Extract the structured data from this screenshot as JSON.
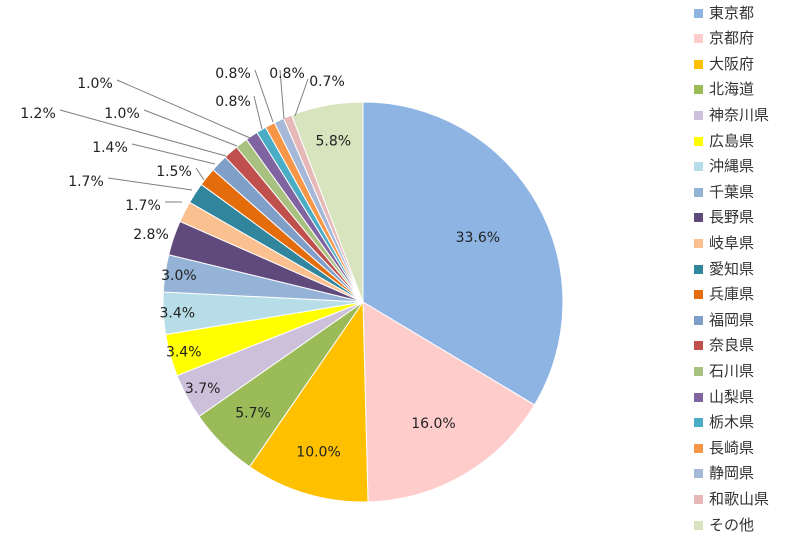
{
  "chart_data": {
    "type": "pie",
    "title": "",
    "categories": [
      "東京都",
      "京都府",
      "大阪府",
      "北海道",
      "神奈川県",
      "広島県",
      "沖縄県",
      "千葉県",
      "長野県",
      "岐阜県",
      "愛知県",
      "兵庫県",
      "福岡県",
      "奈良県",
      "石川県",
      "山梨県",
      "栃木県",
      "長崎県",
      "静岡県",
      "和歌山県",
      "その他"
    ],
    "values": [
      33.6,
      16.0,
      10.0,
      5.7,
      3.7,
      3.4,
      3.4,
      3.0,
      2.8,
      1.7,
      1.7,
      1.5,
      1.4,
      1.2,
      1.0,
      1.0,
      0.8,
      0.8,
      0.8,
      0.7,
      5.8
    ],
    "labels": [
      "33.6%",
      "16.0%",
      "10.0%",
      "5.7%",
      "3.7%",
      "3.4%",
      "3.4%",
      "3.0%",
      "2.8%",
      "1.7%",
      "1.7%",
      "1.5%",
      "1.4%",
      "1.2%",
      "1.0%",
      "1.0%",
      "0.8%",
      "0.8%",
      "0.8%",
      "0.7%",
      "5.8%"
    ],
    "colors": [
      "#8EB4E3",
      "#FFCCCC",
      "#FFC000",
      "#9BBB59",
      "#CCC0DA",
      "#FFFF00",
      "#B7DEE8",
      "#95B3D7",
      "#604A7B",
      "#FAC090",
      "#31859C",
      "#E46C0A",
      "#7F9FC9",
      "#C0504D",
      "#A8C080",
      "#8064A2",
      "#4BACC6",
      "#F79646",
      "#A6B8D8",
      "#E6B9B8",
      "#D7E4BD"
    ],
    "legend_position": "right",
    "start_angle_deg": 0,
    "direction": "clockwise"
  }
}
